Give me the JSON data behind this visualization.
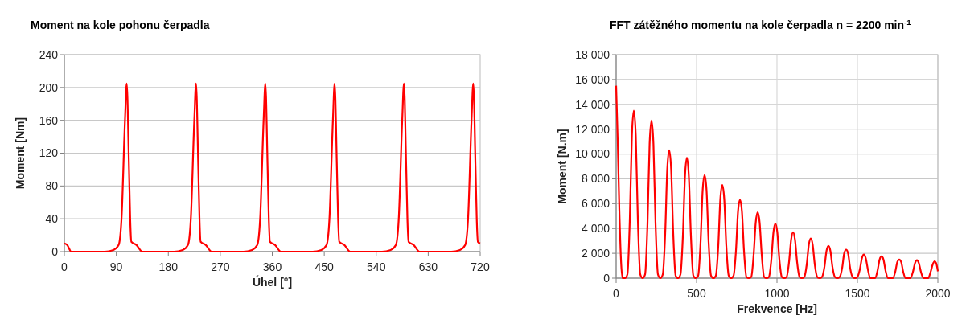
{
  "chart_data": [
    {
      "type": "line",
      "title": "Moment na kole pohonu čerpadla",
      "xlabel": "Úhel [°]",
      "ylabel": "Moment [Nm]",
      "xlim": [
        0,
        720
      ],
      "xticks": [
        0,
        90,
        180,
        270,
        360,
        450,
        540,
        630,
        720
      ],
      "ylim": [
        0,
        240
      ],
      "yticks": [
        0,
        40,
        80,
        120,
        160,
        200,
        240
      ],
      "grid": "y",
      "marker": "none",
      "line_style": "solid",
      "series": [
        {
          "color": "#ff0000",
          "x": [
            0,
            5,
            12,
            70,
            85,
            94,
            99,
            105,
            108,
            112,
            114,
            116,
            125,
            135,
            190,
            205,
            214,
            219,
            225,
            228,
            232,
            234,
            236,
            245,
            255,
            310,
            325,
            334,
            339,
            345,
            348,
            352,
            354,
            356,
            365,
            375,
            430,
            445,
            454,
            459,
            465,
            468,
            472,
            474,
            476,
            485,
            495,
            550,
            565,
            574,
            579,
            585,
            588,
            592,
            594,
            596,
            605,
            615,
            670,
            685,
            694,
            699,
            705,
            708,
            712,
            714,
            716,
            720
          ],
          "values": [
            10,
            8,
            0,
            0,
            2,
            8,
            40,
            160,
            205,
            100,
            40,
            12,
            8,
            0,
            0,
            2,
            8,
            40,
            160,
            205,
            100,
            40,
            12,
            8,
            0,
            0,
            2,
            8,
            40,
            160,
            205,
            100,
            40,
            12,
            8,
            0,
            0,
            2,
            8,
            40,
            160,
            205,
            100,
            40,
            12,
            8,
            0,
            0,
            2,
            8,
            40,
            160,
            205,
            100,
            40,
            12,
            8,
            0,
            0,
            2,
            8,
            40,
            160,
            205,
            100,
            40,
            12,
            10
          ]
        }
      ]
    },
    {
      "type": "line",
      "title": "FFT zátěžného momentu na kole čerpadla n = 2200 min$^{-1}$",
      "xlabel": "Frekvence [Hz]",
      "ylabel": "Moment [N.m]",
      "xlim": [
        0,
        2000
      ],
      "xticks": [
        0,
        500,
        1000,
        1500,
        2000
      ],
      "ylim": [
        0,
        18000
      ],
      "yticks": [
        0,
        {
          "value": 2000,
          "label": "2 000"
        },
        {
          "value": 4000,
          "label": "4 000"
        },
        {
          "value": 6000,
          "label": "6 000"
        },
        {
          "value": 8000,
          "label": "8 000"
        },
        {
          "value": 10000,
          "label": "10 000"
        },
        {
          "value": 12000,
          "label": "12 000"
        },
        {
          "value": 14000,
          "label": "14 000"
        },
        {
          "value": 16000,
          "label": "16 000"
        },
        {
          "value": 18000,
          "label": "18 000"
        }
      ],
      "grid": true,
      "marker": "none",
      "line_style": "solid",
      "series": [
        {
          "color": "#ff0000",
          "x": [
            0,
            10,
            20,
            30,
            40,
            55,
            70,
            85,
            98,
            110,
            122,
            135,
            150,
            165,
            180,
            195,
            208,
            220,
            232,
            245,
            260,
            275,
            290,
            305,
            318,
            330,
            342,
            355,
            370,
            385,
            400,
            415,
            428,
            440,
            452,
            465,
            480,
            495,
            510,
            525,
            538,
            550,
            562,
            575,
            590,
            605,
            620,
            635,
            648,
            660,
            672,
            685,
            700,
            715,
            730,
            745,
            758,
            770,
            782,
            795,
            810,
            825,
            840,
            855,
            868,
            880,
            892,
            905,
            920,
            935,
            950,
            965,
            978,
            990,
            1002,
            1015,
            1030,
            1045,
            1060,
            1075,
            1088,
            1100,
            1112,
            1125,
            1140,
            1155,
            1170,
            1185,
            1198,
            1210,
            1222,
            1235,
            1250,
            1265,
            1280,
            1295,
            1308,
            1320,
            1332,
            1345,
            1360,
            1375,
            1390,
            1405,
            1418,
            1430,
            1442,
            1455,
            1470,
            1485,
            1500,
            1515,
            1528,
            1540,
            1552,
            1565,
            1580,
            1595,
            1610,
            1625,
            1638,
            1650,
            1662,
            1675,
            1690,
            1705,
            1720,
            1735,
            1748,
            1760,
            1772,
            1785,
            1800,
            1815,
            1830,
            1845,
            1858,
            1870,
            1882,
            1895,
            1910,
            1925,
            1940,
            1955,
            1968,
            1980,
            1992,
            2000
          ],
          "values": [
            15500,
            11000,
            5500,
            1500,
            0,
            0,
            300,
            4700,
            11500,
            13500,
            11500,
            4700,
            300,
            0,
            300,
            4400,
            10800,
            12700,
            10800,
            4400,
            300,
            0,
            300,
            3600,
            8800,
            10300,
            8800,
            3600,
            200,
            0,
            300,
            3400,
            8200,
            9700,
            8200,
            3400,
            200,
            0,
            200,
            2900,
            7100,
            8300,
            7100,
            2900,
            200,
            0,
            200,
            2600,
            6400,
            7500,
            6400,
            2600,
            200,
            0,
            200,
            2200,
            5400,
            6300,
            5400,
            2200,
            100,
            0,
            100,
            1900,
            4500,
            5300,
            4500,
            1900,
            100,
            0,
            100,
            1500,
            3700,
            4400,
            3700,
            1500,
            100,
            0,
            100,
            1300,
            3100,
            3700,
            3100,
            1300,
            100,
            0,
            100,
            1100,
            2700,
            3200,
            2700,
            1100,
            100,
            0,
            100,
            900,
            2200,
            2600,
            2200,
            900,
            100,
            0,
            100,
            800,
            2000,
            2300,
            2000,
            800,
            100,
            0,
            100,
            700,
            1600,
            1900,
            1600,
            700,
            0,
            0,
            0,
            600,
            1500,
            1750,
            1500,
            600,
            0,
            0,
            0,
            500,
            1300,
            1500,
            1300,
            500,
            0,
            0,
            0,
            500,
            1200,
            1450,
            1200,
            500,
            0,
            0,
            0,
            500,
            1100,
            1350,
            1100,
            550
          ]
        }
      ]
    }
  ]
}
